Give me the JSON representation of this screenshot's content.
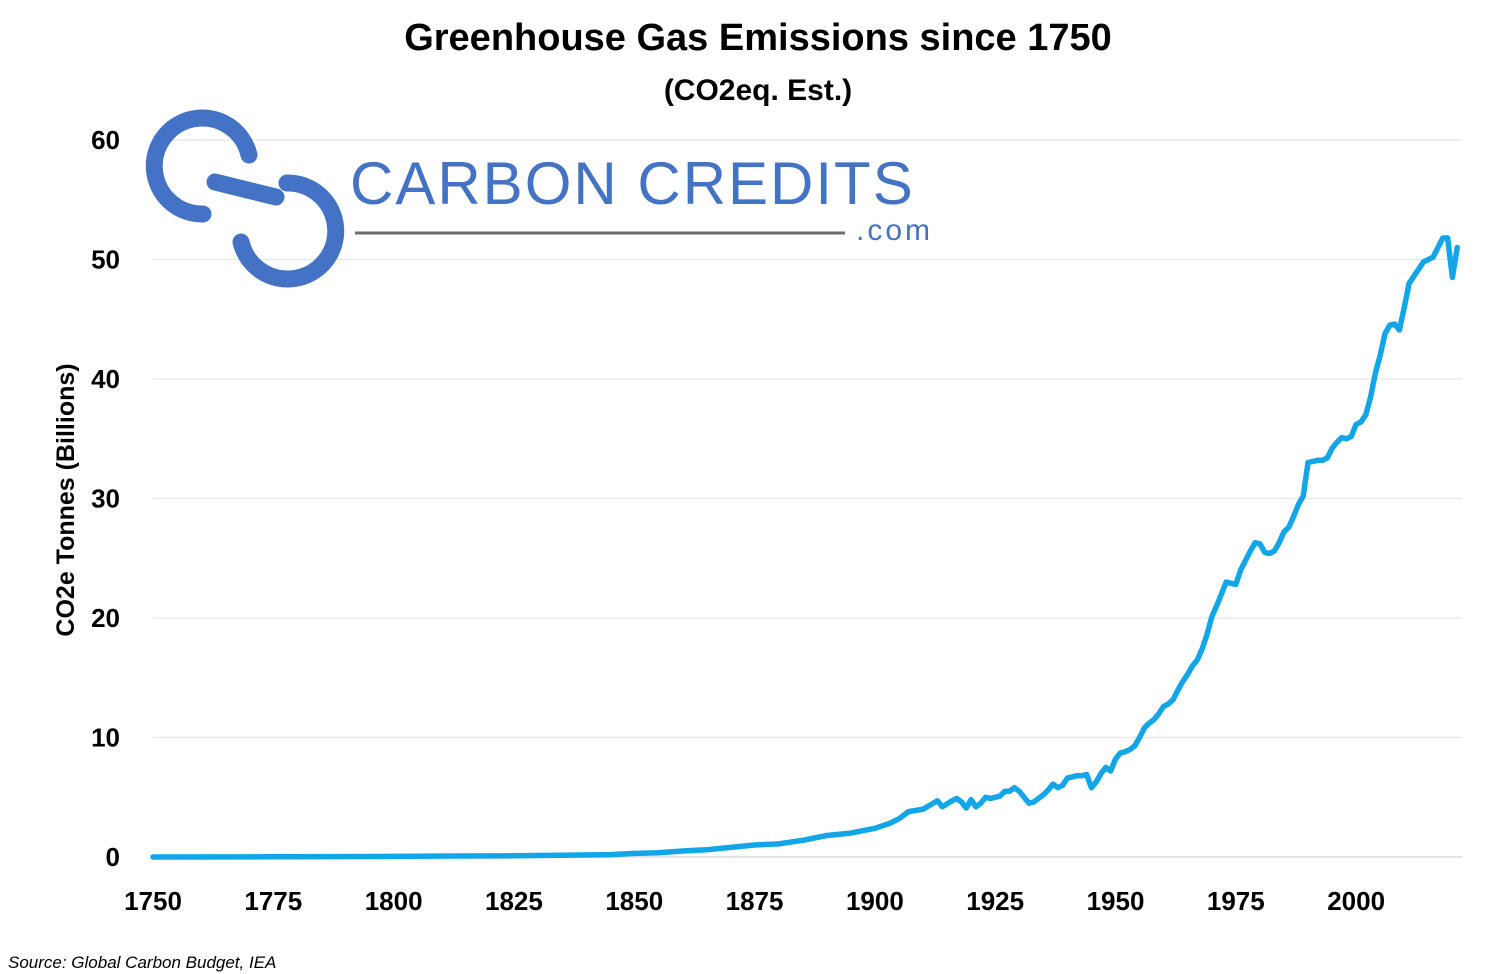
{
  "logo": {
    "name": "CARBON CREDITS",
    "domain": ".com",
    "color": "#4472c4",
    "line_color": "#6d6d6d"
  },
  "source": "Source: Global Carbon Budget, IEA",
  "chart_data": {
    "type": "line",
    "title": "Greenhouse Gas Emissions since 1750",
    "subtitle": "(CO2eq. Est.)",
    "xlabel": "",
    "ylabel": "CO2e Tonnes (Billions)",
    "xlim": [
      1750,
      2022
    ],
    "ylim": [
      0,
      60
    ],
    "x_ticks": [
      1750,
      1775,
      1800,
      1825,
      1850,
      1875,
      1900,
      1925,
      1950,
      1975,
      2000
    ],
    "y_ticks": [
      0,
      10,
      20,
      30,
      40,
      50,
      60
    ],
    "grid": "horizontal",
    "series_color": "#12a6e8",
    "series": [
      {
        "name": "",
        "x": [
          1750,
          1775,
          1800,
          1812,
          1825,
          1835,
          1845,
          1850,
          1855,
          1860,
          1865,
          1870,
          1875,
          1880,
          1885,
          1890,
          1895,
          1900,
          1903,
          1905,
          1907,
          1910,
          1913,
          1914,
          1916,
          1917,
          1918,
          1919,
          1920,
          1921,
          1922,
          1923,
          1924,
          1925,
          1926,
          1927,
          1928,
          1929,
          1930,
          1931,
          1932,
          1933,
          1934,
          1935,
          1936,
          1937,
          1938,
          1939,
          1940,
          1941,
          1942,
          1943,
          1944,
          1945,
          1946,
          1947,
          1948,
          1949,
          1950,
          1951,
          1952,
          1953,
          1954,
          1955,
          1956,
          1957,
          1958,
          1959,
          1960,
          1961,
          1962,
          1963,
          1964,
          1965,
          1966,
          1967,
          1968,
          1969,
          1970,
          1971,
          1972,
          1973,
          1974,
          1975,
          1976,
          1977,
          1978,
          1979,
          1980,
          1981,
          1982,
          1983,
          1984,
          1985,
          1986,
          1987,
          1988,
          1989,
          1990,
          1991,
          1992,
          1993,
          1994,
          1995,
          1996,
          1997,
          1998,
          1999,
          2000,
          2001,
          2002,
          2003,
          2004,
          2005,
          2006,
          2007,
          2008,
          2009,
          2010,
          2011,
          2012,
          2013,
          2014,
          2015,
          2016,
          2017,
          2018,
          2019,
          2020,
          2021
        ],
        "values": [
          0.0,
          0.02,
          0.05,
          0.08,
          0.1,
          0.15,
          0.2,
          0.3,
          0.35,
          0.5,
          0.6,
          0.8,
          1.0,
          1.1,
          1.4,
          1.8,
          2.0,
          2.4,
          2.8,
          3.2,
          3.8,
          4.0,
          4.7,
          4.2,
          4.7,
          4.9,
          4.6,
          4.1,
          4.8,
          4.2,
          4.5,
          5.0,
          4.9,
          5.0,
          5.1,
          5.5,
          5.5,
          5.8,
          5.5,
          5.0,
          4.5,
          4.6,
          4.9,
          5.2,
          5.6,
          6.1,
          5.8,
          6.0,
          6.6,
          6.7,
          6.8,
          6.8,
          6.9,
          5.8,
          6.3,
          7.0,
          7.5,
          7.2,
          8.2,
          8.7,
          8.8,
          9.0,
          9.3,
          10.0,
          10.8,
          11.2,
          11.5,
          12.0,
          12.6,
          12.8,
          13.2,
          14.0,
          14.7,
          15.3,
          16.0,
          16.5,
          17.4,
          18.6,
          20.1,
          21.0,
          22.0,
          23.0,
          22.9,
          22.8,
          24.0,
          24.8,
          25.6,
          26.3,
          26.2,
          25.5,
          25.4,
          25.6,
          26.3,
          27.2,
          27.6,
          28.5,
          29.5,
          30.2,
          33.0,
          33.1,
          33.2,
          33.2,
          33.4,
          34.2,
          34.7,
          35.1,
          35.0,
          35.2,
          36.2,
          36.4,
          37.0,
          38.5,
          40.5,
          42.0,
          43.8,
          44.5,
          44.6,
          44.1,
          46.0,
          48.0,
          48.6,
          49.2,
          49.8,
          50.0,
          50.2,
          51.0,
          51.8,
          51.8,
          48.5,
          51.0
        ]
      }
    ]
  }
}
